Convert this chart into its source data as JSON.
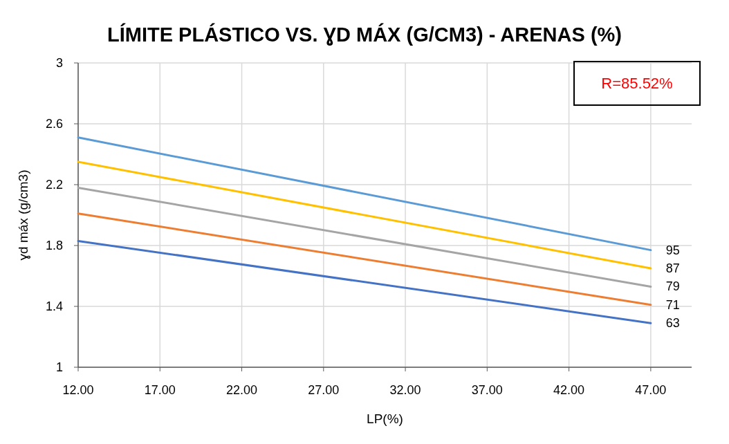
{
  "chart_data": {
    "type": "line",
    "title": "LÍMITE PLÁSTICO VS. ƔD MÁX (G/CM3) - ARENAS (%)",
    "xlabel": "LP(%)",
    "ylabel": "ɣd máx (g/cm3)",
    "annotations": [
      "R=85.52%"
    ],
    "x": [
      12,
      47
    ],
    "series": [
      {
        "name": "95",
        "color": "#5b9bd5",
        "values": [
          2.51,
          1.77
        ]
      },
      {
        "name": "87",
        "color": "#ffc000",
        "values": [
          2.35,
          1.65
        ]
      },
      {
        "name": "79",
        "color": "#a5a5a5",
        "values": [
          2.18,
          1.53
        ]
      },
      {
        "name": "71",
        "color": "#ed7d31",
        "values": [
          2.01,
          1.41
        ]
      },
      {
        "name": "63",
        "color": "#4472c4",
        "values": [
          1.83,
          1.29
        ]
      }
    ],
    "xlim": [
      12,
      49.5
    ],
    "ylim": [
      1,
      3
    ],
    "xticks": [
      {
        "value": 12,
        "label": "12.00"
      },
      {
        "value": 17,
        "label": "17.00"
      },
      {
        "value": 22,
        "label": "22.00"
      },
      {
        "value": 27,
        "label": "27.00"
      },
      {
        "value": 32,
        "label": "32.00"
      },
      {
        "value": 37,
        "label": "37.00"
      },
      {
        "value": 42,
        "label": "42.00"
      },
      {
        "value": 47,
        "label": "47.00"
      }
    ],
    "yticks": [
      1,
      1.4,
      1.8,
      2.2,
      2.6,
      3
    ],
    "grid": true,
    "legend": false,
    "marker": "none",
    "line_style": "solid"
  }
}
